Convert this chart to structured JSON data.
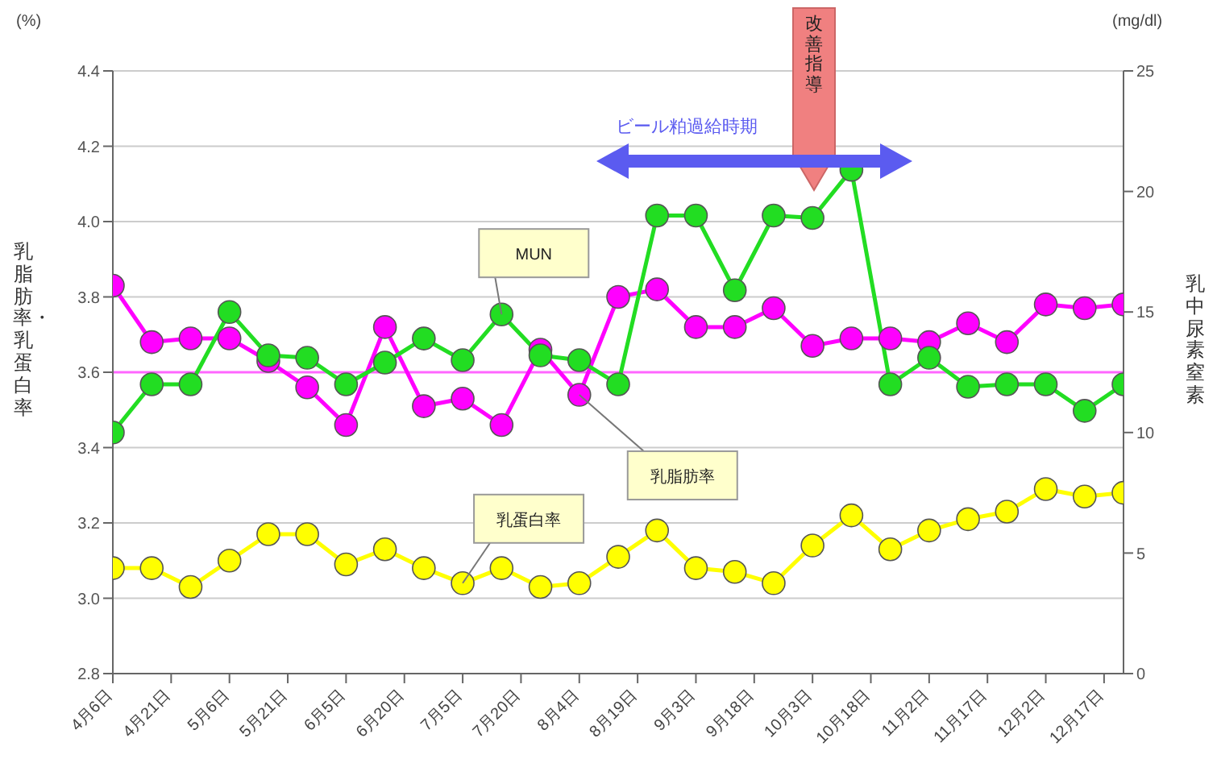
{
  "chart_data": {
    "type": "line",
    "x": [
      "--04-06",
      "--04-16",
      "--04-26",
      "--05-06",
      "--05-16",
      "--05-26",
      "--06-05",
      "--06-15",
      "--06-25",
      "--07-05",
      "--07-15",
      "--07-25",
      "--08-04",
      "--08-14",
      "--08-24",
      "--09-03",
      "--09-13",
      "--09-23",
      "--10-03",
      "--10-13",
      "--10-23",
      "--11-02",
      "--11-12",
      "--11-22",
      "--12-02",
      "--12-12",
      "--12-22"
    ],
    "series": [
      {
        "name": "乳脂肪率",
        "color": "#ff00ff",
        "values": [
          3.83,
          3.68,
          3.69,
          3.69,
          3.63,
          3.56,
          3.46,
          3.72,
          3.51,
          3.53,
          3.46,
          3.66,
          3.54,
          3.8,
          3.82,
          3.72,
          3.72,
          3.77,
          3.67,
          3.69,
          3.69,
          3.68,
          3.73,
          3.68,
          3.78,
          3.77,
          3.78
        ]
      },
      {
        "name": "乳蛋白率",
        "color": "#ffff00",
        "values": [
          3.08,
          3.08,
          3.03,
          3.1,
          3.17,
          3.17,
          3.09,
          3.13,
          3.08,
          3.04,
          3.08,
          3.03,
          3.04,
          3.11,
          3.18,
          3.08,
          3.07,
          3.04,
          3.14,
          3.22,
          3.13,
          3.18,
          3.21,
          3.23,
          3.29,
          3.27,
          3.28
        ]
      },
      {
        "name": "MUN",
        "color": "#22dd22",
        "axis": "y2",
        "values": [
          10,
          12,
          12,
          15,
          13.2,
          13.1,
          12,
          12.9,
          13.9,
          13,
          14.9,
          13.2,
          13,
          12,
          19,
          19,
          15.9,
          19,
          18.9,
          20.9,
          12,
          13.1,
          11.9,
          12,
          12,
          10.9,
          12
        ]
      }
    ],
    "ylabel": "乳脂肪率・乳蛋白率",
    "y2label": "乳中尿素窒素",
    "xlim": [
      "--04-06",
      "--12-22"
    ],
    "xticks": [
      {
        "value": "--04-06",
        "label": "4月6日"
      },
      {
        "value": "--04-21",
        "label": "4月21日"
      },
      {
        "value": "--05-06",
        "label": "5月6日"
      },
      {
        "value": "--05-21",
        "label": "5月21日"
      },
      {
        "value": "--06-05",
        "label": "6月5日"
      },
      {
        "value": "--06-20",
        "label": "6月20日"
      },
      {
        "value": "--07-05",
        "label": "7月5日"
      },
      {
        "value": "--07-20",
        "label": "7月20日"
      },
      {
        "value": "--08-04",
        "label": "8月4日"
      },
      {
        "value": "--08-19",
        "label": "8月19日"
      },
      {
        "value": "--09-03",
        "label": "9月3日"
      },
      {
        "value": "--09-18",
        "label": "9月18日"
      },
      {
        "value": "--10-03",
        "label": "10月3日"
      },
      {
        "value": "--10-18",
        "label": "10月18日"
      },
      {
        "value": "--11-02",
        "label": "11月2日"
      },
      {
        "value": "--11-17",
        "label": "11月17日"
      },
      {
        "value": "--12-02",
        "label": "12月2日"
      },
      {
        "value": "--12-17",
        "label": "12月17日"
      }
    ],
    "ylim": [
      2.8,
      4.4
    ],
    "yticks": [
      2.8,
      {
        "value": 3,
        "label": "3.0"
      },
      3.2,
      3.4,
      3.6,
      3.8,
      {
        "value": 4,
        "label": "4.0"
      },
      4.2,
      4.4
    ],
    "y2lim": [
      0,
      25
    ],
    "y2ticks": [
      0,
      5,
      10,
      15,
      20,
      25
    ],
    "ref_lines": [
      {
        "axis": "y",
        "value": 3.6,
        "color": "#ff66ff"
      }
    ],
    "annotations": [
      "(%)",
      "(mg/dl)",
      "改善指導",
      "ビール粕過給時期"
    ],
    "grid": "y",
    "marker": "circle",
    "line_style": "solid",
    "legend": false
  }
}
